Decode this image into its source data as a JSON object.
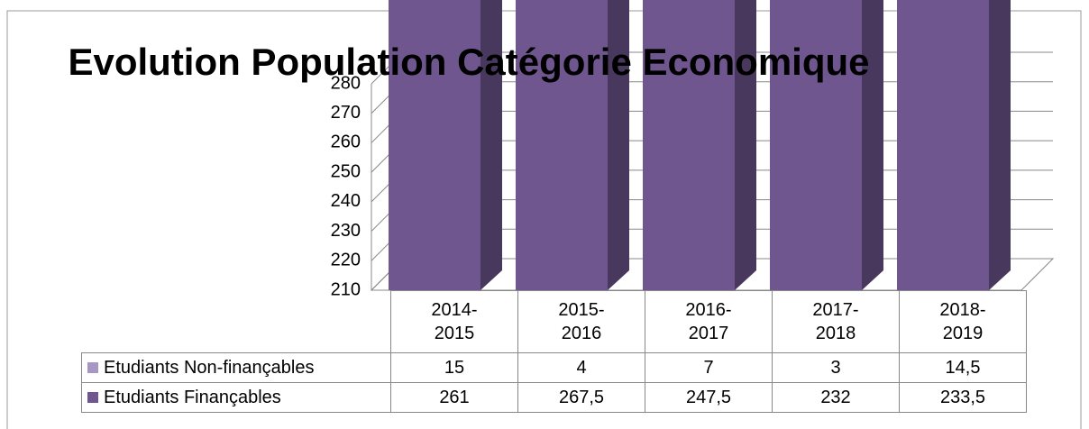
{
  "chart_data": {
    "type": "bar3d_stacked",
    "title": "Evolution Population Catégorie Economique",
    "categories": [
      "2014-2015",
      "2015-2016",
      "2016-2017",
      "2017-2018",
      "2018-2019"
    ],
    "series": [
      {
        "name": "Etudiants Finançables",
        "color": "#6f568f",
        "values": [
          261,
          267.5,
          247.5,
          232,
          233.5
        ],
        "value_labels": [
          "261",
          "267,5",
          "247,5",
          "232",
          "233,5"
        ]
      },
      {
        "name": "Etudiants Non-finançables",
        "color": "#a897c2",
        "values": [
          15,
          4,
          7,
          3,
          14.5
        ],
        "value_labels": [
          "15",
          "4",
          "7",
          "3",
          "14,5"
        ]
      }
    ],
    "ylim": [
      210,
      280
    ],
    "yticks": [
      210,
      220,
      230,
      240,
      250,
      260,
      270,
      280
    ],
    "grid": true
  }
}
